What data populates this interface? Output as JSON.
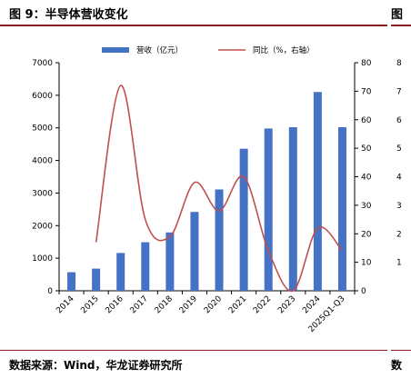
{
  "header": {
    "title": "图 9：半导体营收变化",
    "title_right_fragment": "图"
  },
  "footer": {
    "source": "数据来源：Wind，华龙证券研究所",
    "source_right_fragment": "数"
  },
  "colors": {
    "bar": "#4472c4",
    "line": "#c0504d",
    "rule": "#8a1f1f",
    "axis": "#000000"
  },
  "chart_data": {
    "type": "bar",
    "categories": [
      "2014",
      "2015",
      "2016",
      "2017",
      "2018",
      "2019",
      "2020",
      "2021",
      "2022",
      "2023",
      "2024",
      "2025Q1-Q3"
    ],
    "series": [
      {
        "name": "营收（亿元）",
        "type": "bar",
        "axis": "left",
        "values": [
          570,
          680,
          1160,
          1490,
          1790,
          2420,
          3110,
          4360,
          4980,
          5020,
          6100,
          5020
        ]
      },
      {
        "name": "同比（%，右轴）",
        "type": "line",
        "axis": "right",
        "values": [
          null,
          17,
          72,
          25,
          19,
          38,
          28,
          40,
          14,
          0,
          22,
          14
        ]
      }
    ],
    "ylim": [
      0,
      7000
    ],
    "y_ticks": [
      0,
      1000,
      2000,
      3000,
      4000,
      5000,
      6000,
      7000
    ],
    "y2lim": [
      0,
      80
    ],
    "y2_ticks": [
      0,
      10,
      20,
      30,
      40,
      50,
      60,
      70,
      80
    ],
    "legend_position": "top",
    "right_panel_partial_ticks": [
      "8",
      "7",
      "6",
      "5",
      "4",
      "3",
      "2",
      "1"
    ],
    "grid": false
  }
}
